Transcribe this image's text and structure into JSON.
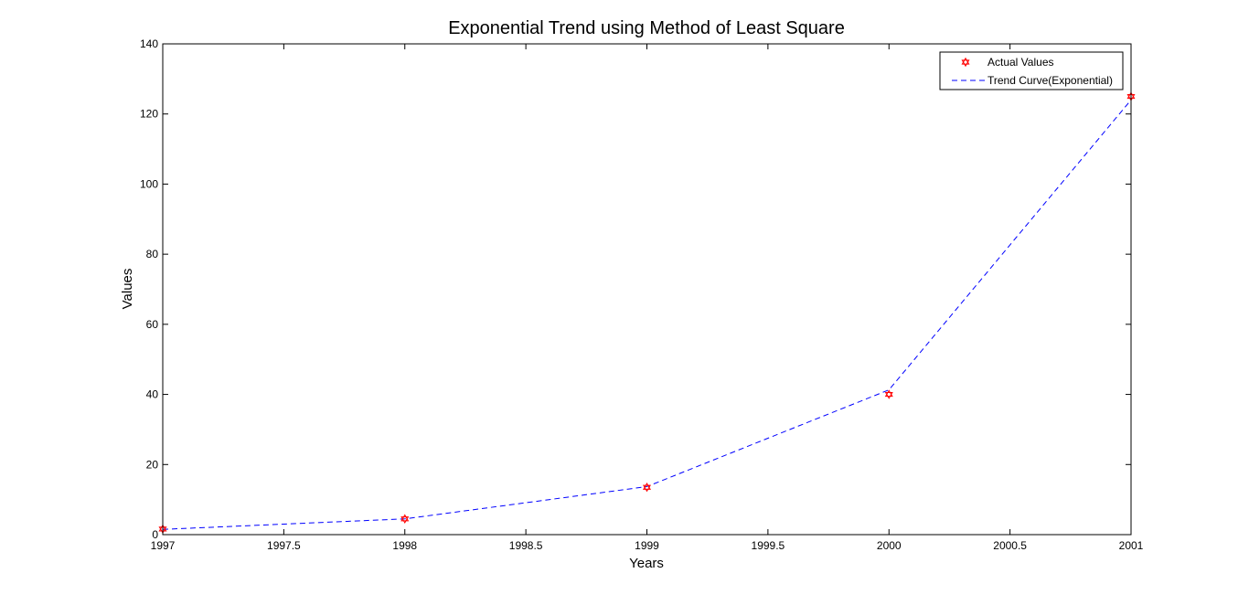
{
  "chart_data": {
    "type": "line",
    "title": "Exponential Trend using Method of Least Square",
    "xlabel": "Years",
    "ylabel": "Values",
    "xlim": [
      1997,
      2001
    ],
    "ylim": [
      0,
      140
    ],
    "xticks": [
      "1997",
      "1997.5",
      "1998",
      "1998.5",
      "1999",
      "1999.5",
      "2000",
      "2000.5",
      "2001"
    ],
    "yticks": [
      "0",
      "20",
      "40",
      "60",
      "80",
      "100",
      "120",
      "140"
    ],
    "grid": false,
    "legend_position": "top-right",
    "series": [
      {
        "name": "Actual Values",
        "style": "scatter",
        "marker": "hexagram",
        "color": "#ff0000",
        "x": [
          1997,
          1998,
          1999,
          2000,
          2001
        ],
        "y": [
          1.6,
          4.5,
          13.5,
          40,
          125
        ]
      },
      {
        "name": "Trend Curve(Exponential)",
        "style": "dashed-line",
        "color": "#0000ff",
        "x": [
          1997,
          1998,
          1999,
          2000,
          2001
        ],
        "y": [
          1.5,
          4.5,
          13.7,
          41.3,
          124
        ]
      }
    ]
  }
}
